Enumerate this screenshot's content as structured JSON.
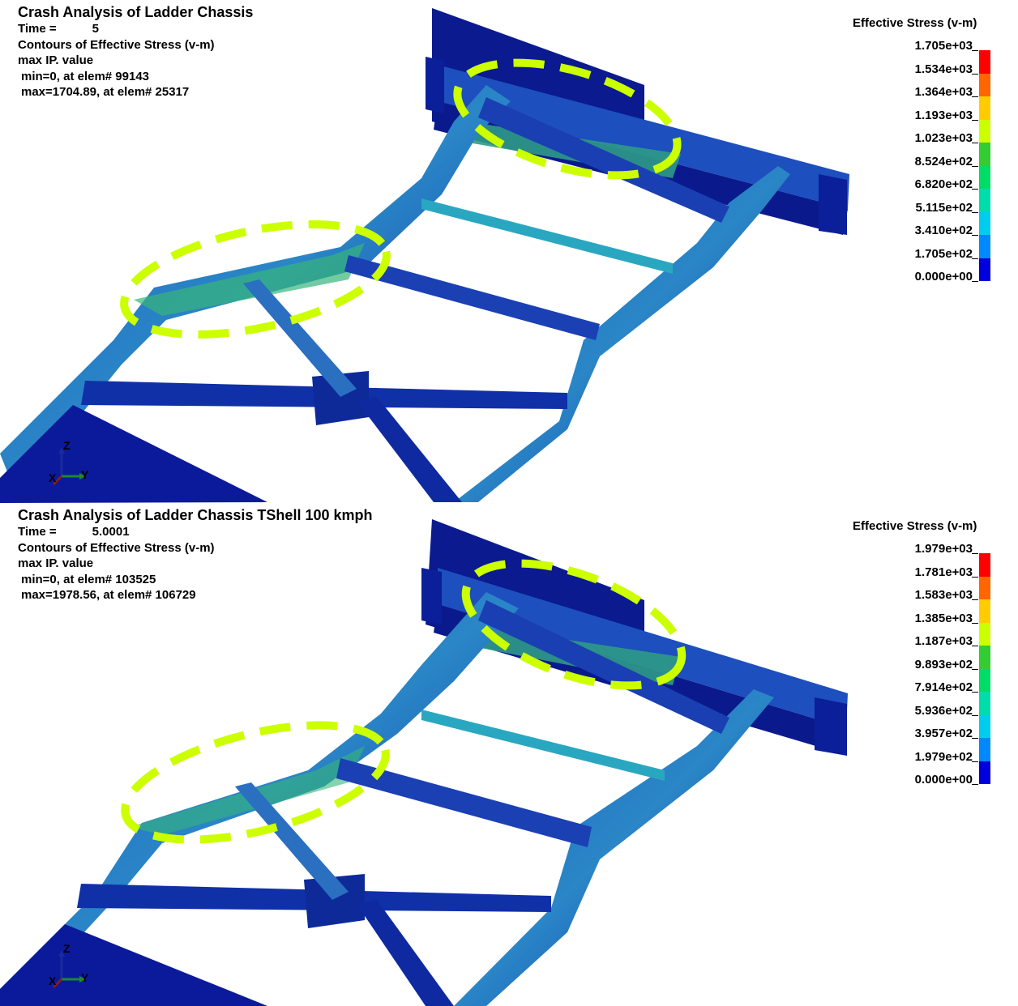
{
  "panels": [
    {
      "title": "Crash Analysis of Ladder Chassis",
      "time_label": "Time =",
      "time_value": "5",
      "contour_label": "Contours of Effective Stress (v-m)",
      "max_ip": "max IP. value",
      "min_text": "min=0, at elem# 99143",
      "max_text": "max=1704.89, at elem# 25317",
      "legend_title": "Effective Stress (v-m)",
      "legend_values": [
        "1.705e+03",
        "1.534e+03",
        "1.364e+03",
        "1.193e+03",
        "1.023e+03",
        "8.524e+02",
        "6.820e+02",
        "5.115e+02",
        "3.410e+02",
        "1.705e+02",
        "0.000e+00"
      ],
      "axis_labels": {
        "z": "Z",
        "x": "X",
        "y": "Y"
      }
    },
    {
      "title": "Crash Analysis of Ladder Chassis TShell 100 kmph",
      "time_label": "Time =",
      "time_value": "5.0001",
      "contour_label": "Contours of Effective Stress (v-m)",
      "max_ip": "max IP. value",
      "min_text": "min=0, at elem# 103525",
      "max_text": "max=1978.56, at elem# 106729",
      "legend_title": "Effective Stress (v-m)",
      "legend_values": [
        "1.979e+03",
        "1.781e+03",
        "1.583e+03",
        "1.385e+03",
        "1.187e+03",
        "9.893e+02",
        "7.914e+02",
        "5.936e+02",
        "3.957e+02",
        "1.979e+02",
        "0.000e+00"
      ],
      "axis_labels": {
        "z": "Z",
        "x": "X",
        "y": "Y"
      }
    }
  ],
  "colors": {
    "legend_scale": [
      "#ff0000",
      "#ff6600",
      "#ffcc00",
      "#ccff00",
      "#33cc33",
      "#00dd66",
      "#00ddaa",
      "#00ccee",
      "#0088ff",
      "#0000dd"
    ],
    "highlight": "#ccff00",
    "frame_dark": "#0a1a9a",
    "frame_mid": "#1f57c8",
    "stress_green": "#3fbf7f"
  }
}
